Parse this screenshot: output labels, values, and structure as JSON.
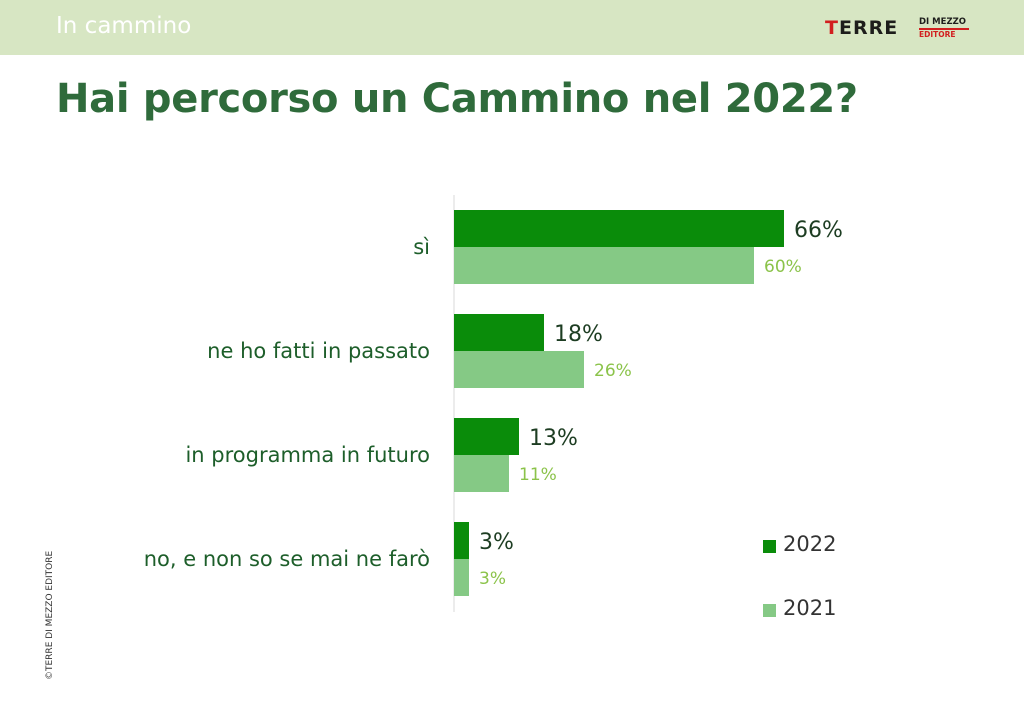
{
  "header": {
    "section": "In cammino",
    "logo": {
      "main": "TERRE",
      "sub1": "DI MEZZO",
      "sub2": "EDITORE"
    }
  },
  "title": "Hai percorso un Cammino nel 2022?",
  "copyright": "©TERRE DI MEZZO EDITORE",
  "colors": {
    "s2022": "#0a8c0a",
    "s2021": "#85c985",
    "title": "#2f6b3b",
    "topbar": "#d7e6c3"
  },
  "chart_data": {
    "type": "bar",
    "orientation": "horizontal",
    "categories": [
      "sì",
      "ne ho fatti in passato",
      "in programma in futuro",
      "no, e non so se mai ne farò"
    ],
    "series": [
      {
        "name": "2022",
        "values": [
          66,
          18,
          13,
          3
        ],
        "labels": [
          "66%",
          "18%",
          "13%",
          "3%"
        ]
      },
      {
        "name": "2021",
        "values": [
          60,
          26,
          11,
          3
        ],
        "labels": [
          "60%",
          "26%",
          "11%",
          "3%"
        ]
      }
    ],
    "title": "Hai percorso un Cammino nel 2022?",
    "xlabel": "",
    "ylabel": "",
    "unit": "%",
    "grid": false,
    "legend": "bottom-right"
  },
  "legend": {
    "items": [
      "2022",
      "2021"
    ]
  }
}
